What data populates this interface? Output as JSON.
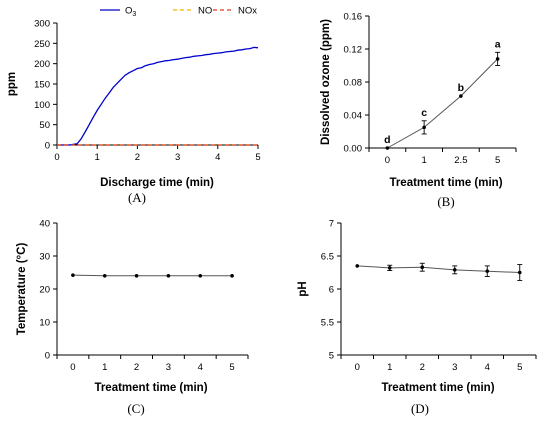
{
  "chart_data": [
    {
      "type": "line",
      "panel": "(A)",
      "xlabel": "Discharge time (min)",
      "ylabel": "ppm",
      "xlim": [
        0,
        5
      ],
      "ylim": [
        0,
        300
      ],
      "xticks": [
        "0",
        "1",
        "2",
        "3",
        "4",
        "5"
      ],
      "yticks": [
        "0",
        "50",
        "100",
        "150",
        "200",
        "250",
        "300"
      ],
      "legend_position": "top",
      "series": [
        {
          "name": "O3",
          "color": "#0000cc",
          "style": "solid",
          "x": [
            0,
            0.3,
            0.5,
            0.6,
            0.7,
            0.8,
            0.9,
            1.0,
            1.1,
            1.2,
            1.3,
            1.4,
            1.5,
            1.6,
            1.7,
            1.8,
            1.9,
            2.0,
            2.1,
            2.2,
            2.3,
            2.4,
            2.5,
            2.6,
            2.7,
            2.8,
            2.9,
            3.0,
            3.1,
            3.2,
            3.3,
            3.4,
            3.5,
            3.6,
            3.7,
            3.8,
            3.9,
            4.0,
            4.1,
            4.2,
            4.3,
            4.4,
            4.5,
            4.6,
            4.7,
            4.8,
            4.9,
            5.0
          ],
          "y": [
            0,
            0,
            3,
            15,
            32,
            50,
            68,
            85,
            100,
            115,
            128,
            142,
            152,
            162,
            172,
            178,
            183,
            188,
            190,
            195,
            198,
            200,
            203,
            205,
            207,
            208,
            210,
            211,
            213,
            215,
            216,
            218,
            219,
            220,
            222,
            223,
            225,
            226,
            227,
            229,
            230,
            231,
            233,
            234,
            236,
            237,
            240,
            239
          ]
        },
        {
          "name": "NO",
          "color": "#f5b400",
          "style": "dashed",
          "x": [
            0,
            5
          ],
          "y": [
            0,
            0
          ]
        },
        {
          "name": "NOx",
          "color": "#e03a1e",
          "style": "dashed",
          "x": [
            0,
            5
          ],
          "y": [
            0,
            0
          ]
        }
      ]
    },
    {
      "type": "line",
      "panel": "(B)",
      "xlabel": "Treatment time (min)",
      "ylabel": "Dissolved ozone (ppm)",
      "categories": [
        "0",
        "1",
        "2.5",
        "5"
      ],
      "ylim": [
        0,
        0.16
      ],
      "yticks": [
        "0.00",
        "0.04",
        "0.08",
        "0.12",
        "0.16"
      ],
      "values": [
        0.0,
        0.025,
        0.063,
        0.108
      ],
      "errors": [
        0.0,
        0.008,
        0.0,
        0.008
      ],
      "annotations": [
        "d",
        "c",
        "b",
        "a"
      ]
    },
    {
      "type": "line",
      "panel": "(C)",
      "xlabel": "Treatment time (min)",
      "ylabel": "Temperature (°C)",
      "categories": [
        "0",
        "1",
        "2",
        "3",
        "4",
        "5"
      ],
      "ylim": [
        0,
        40
      ],
      "yticks": [
        "0",
        "10",
        "20",
        "30",
        "40"
      ],
      "values": [
        24.2,
        24.0,
        24.0,
        24.0,
        24.0,
        24.0
      ],
      "errors": [
        0,
        0,
        0,
        0,
        0,
        0
      ]
    },
    {
      "type": "line",
      "panel": "(D)",
      "xlabel": "Treatment time (min)",
      "ylabel": "pH",
      "categories": [
        "0",
        "1",
        "2",
        "3",
        "4",
        "5"
      ],
      "ylim": [
        5,
        7
      ],
      "yticks": [
        "5",
        "5.5",
        "6",
        "6.5",
        "7"
      ],
      "values": [
        6.35,
        6.32,
        6.33,
        6.29,
        6.27,
        6.25
      ],
      "errors": [
        0.0,
        0.04,
        0.06,
        0.06,
        0.08,
        0.12
      ]
    }
  ]
}
